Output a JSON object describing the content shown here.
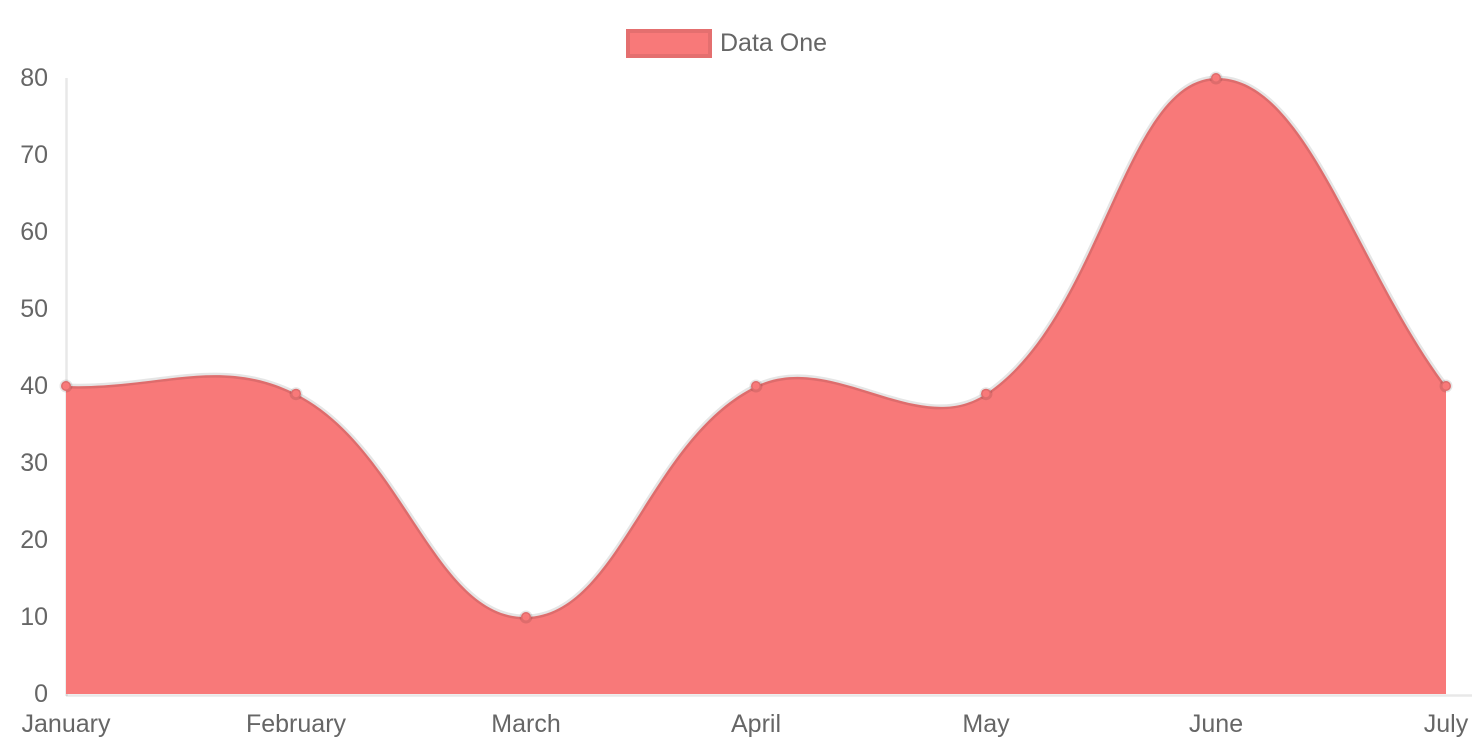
{
  "legend": {
    "label": "Data One"
  },
  "chart_data": {
    "type": "area",
    "title": "",
    "x": [
      "January",
      "February",
      "March",
      "April",
      "May",
      "June",
      "July"
    ],
    "series": [
      {
        "name": "Data One",
        "values": [
          40,
          39,
          10,
          40,
          39,
          80,
          40
        ]
      }
    ],
    "ylim": [
      0,
      80
    ],
    "yticks": [
      0,
      10,
      20,
      30,
      40,
      50,
      60,
      70,
      80
    ],
    "xlabel": "",
    "ylabel": "",
    "legend_position": "top",
    "grid": false,
    "line_tension": 0.4,
    "colors": {
      "fill": "#f87979",
      "point_fill": "#f87979",
      "border": "rgba(0,0,0,0.1)",
      "axis_line": "rgba(0,0,0,0.09)",
      "tick_text": "#666666"
    }
  }
}
